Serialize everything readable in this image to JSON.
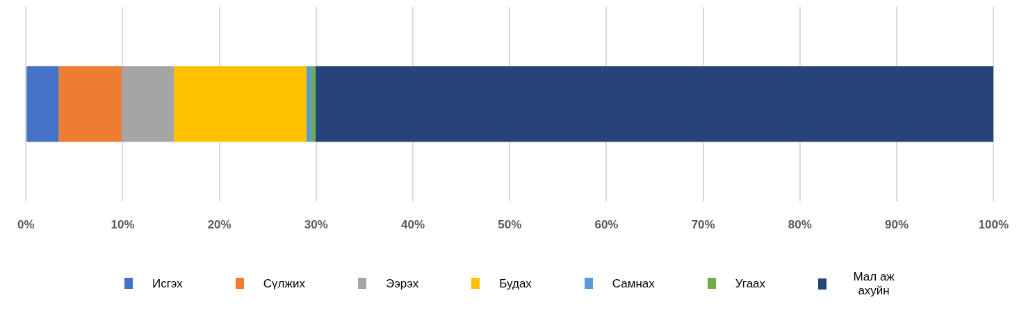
{
  "chart_data": {
    "type": "bar",
    "orientation": "horizontal",
    "stacked": true,
    "categories": [
      null
    ],
    "series": [
      {
        "name": "Исгэх",
        "color": "#4472c4",
        "values": [
          3.4
        ]
      },
      {
        "name": "Сүлжих",
        "color": "#ed7d31",
        "values": [
          6.5
        ]
      },
      {
        "name": "Ээрэх",
        "color": "#a5a5a5",
        "values": [
          5.4
        ]
      },
      {
        "name": "Будах",
        "color": "#ffc000",
        "values": [
          13.7
        ]
      },
      {
        "name": "Самнах",
        "color": "#5b9bd5",
        "values": [
          0.5
        ]
      },
      {
        "name": "Угаах",
        "color": "#70ad47",
        "values": [
          0.4
        ]
      },
      {
        "name": "Мал аж ахуйн",
        "color": "#264478",
        "values": [
          70.1
        ]
      }
    ],
    "xlim": [
      0,
      100
    ],
    "xticks": [
      {
        "value": 0,
        "label": "0%"
      },
      {
        "value": 10,
        "label": "10%"
      },
      {
        "value": 20,
        "label": "20%"
      },
      {
        "value": 30,
        "label": "30%"
      },
      {
        "value": 40,
        "label": "40%"
      },
      {
        "value": 50,
        "label": "50%"
      },
      {
        "value": 60,
        "label": "60%"
      },
      {
        "value": 70,
        "label": "70%"
      },
      {
        "value": 80,
        "label": "80%"
      },
      {
        "value": 90,
        "label": "90%"
      },
      {
        "value": 100,
        "label": "100%"
      }
    ],
    "grid": "x",
    "legend": "bottom"
  }
}
